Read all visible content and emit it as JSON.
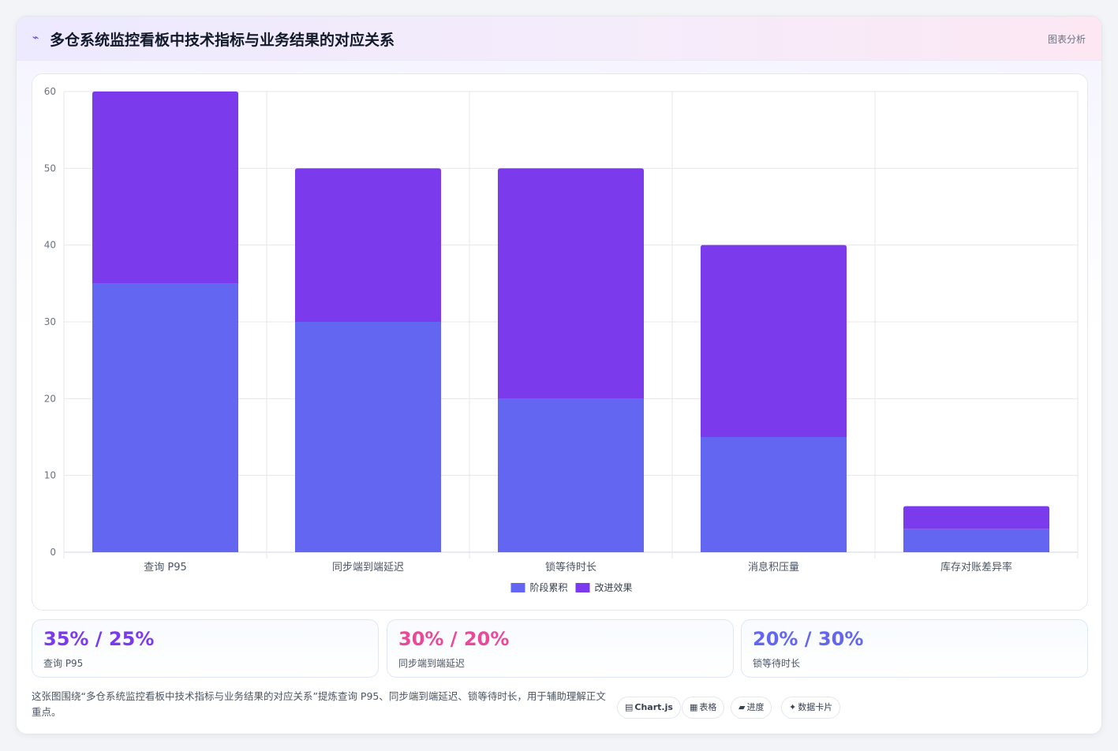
{
  "header": {
    "icon": "⌁",
    "title": "多仓系统监控看板中技术指标与业务结果的对应关系",
    "tag": "图表分析"
  },
  "chart_data": {
    "type": "bar",
    "stacked": true,
    "title": "",
    "xlabel": "",
    "ylabel": "",
    "categories": [
      "查询 P95",
      "同步端到端延迟",
      "锁等待时长",
      "消息积压量",
      "库存对账差异率"
    ],
    "series": [
      {
        "name": "阶段累积",
        "color": "#6366f1",
        "values": [
          35,
          30,
          20,
          15,
          3
        ]
      },
      {
        "name": "改进效果",
        "color": "#7c3aed",
        "values": [
          25,
          20,
          30,
          25,
          3
        ]
      }
    ],
    "ylim": [
      0,
      60
    ],
    "yticks": [
      0,
      10,
      20,
      30,
      40,
      50,
      60
    ],
    "grid": true,
    "legend_position": "bottom"
  },
  "stats": [
    {
      "value": "35% / 25%",
      "label": "查询 P95",
      "color": "#7c3aed"
    },
    {
      "value": "30% / 20%",
      "label": "同步端到端延迟",
      "color": "#ec4899"
    },
    {
      "value": "20% / 30%",
      "label": "锁等待时长",
      "color": "#6366f1"
    }
  ],
  "footer": {
    "text": "这张图围绕“多仓系统监控看板中技术指标与业务结果的对应关系”提炼查询 P95、同步端到端延迟、锁等待时长，用于辅助理解正文重点。",
    "chips": [
      {
        "icon": "▤",
        "label": "Chart.js",
        "icon_name": "chart-icon"
      },
      {
        "icon": "▦",
        "label": "表格",
        "icon_name": "table-icon"
      },
      {
        "icon": "▰",
        "label": "进度",
        "icon_name": "progress-icon"
      },
      {
        "icon": "✦",
        "label": "数据卡片",
        "icon_name": "sparkle-icon"
      }
    ]
  }
}
